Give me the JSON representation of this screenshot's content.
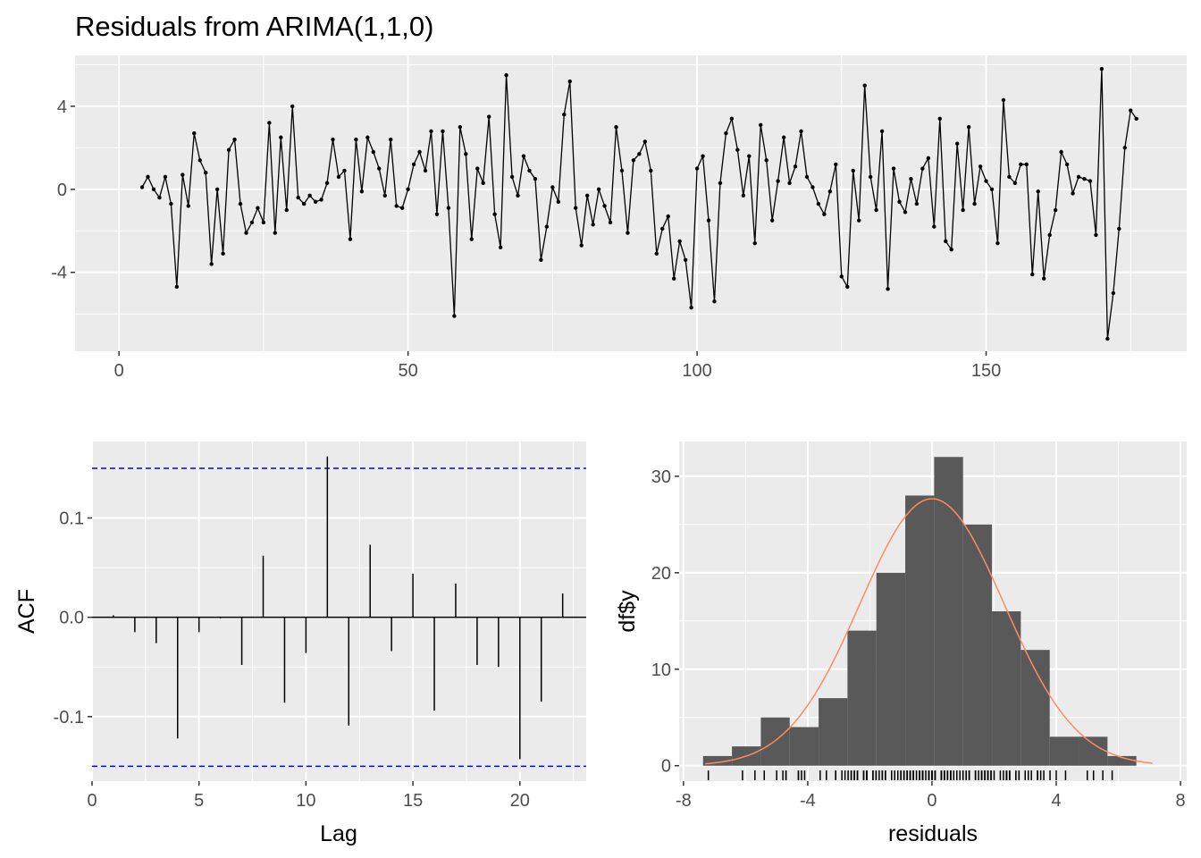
{
  "chart_data": [
    {
      "type": "line",
      "title": "Residuals from ARIMA(1,1,0)",
      "xlabel": "",
      "ylabel": "",
      "xlim": [
        -7.6,
        184.7
      ],
      "ylim": [
        -7.8,
        6.45
      ],
      "xticks": [
        0,
        50,
        100,
        150
      ],
      "yticks": [
        -4,
        0,
        4
      ],
      "grid": true,
      "x_start": 4,
      "values": [
        0.1,
        0.6,
        0,
        -0.4,
        0.6,
        -0.7,
        -4.7,
        0.7,
        -0.8,
        2.7,
        1.4,
        0.8,
        -3.6,
        0,
        -3.1,
        1.9,
        2.4,
        -0.7,
        -2.1,
        -1.6,
        -0.9,
        -1.6,
        3.2,
        -2.1,
        2.5,
        -1.0,
        4.0,
        -0.4,
        -0.7,
        -0.3,
        -0.6,
        -0.5,
        0.3,
        2.4,
        0.6,
        0.9,
        -2.4,
        2.4,
        -0.1,
        2.5,
        1.8,
        1.0,
        -0.3,
        2.4,
        -0.8,
        -0.9,
        0,
        1.2,
        1.8,
        0.9,
        2.8,
        -1.2,
        2.8,
        -0.9,
        -6.1,
        3.0,
        1.7,
        -2.4,
        1.0,
        0.3,
        3.5,
        -1.2,
        -2.8,
        5.5,
        0.6,
        -0.3,
        1.6,
        0.9,
        0.5,
        -3.4,
        -1.8,
        0.1,
        -0.6,
        3.6,
        5.2,
        -0.9,
        -2.7,
        -0.3,
        -1.7,
        0,
        -0.8,
        -1.6,
        3.0,
        0.9,
        -2.1,
        1.4,
        1.7,
        2.3,
        0.9,
        -3.1,
        -1.9,
        -1.3,
        -4.3,
        -2.5,
        -3.4,
        -5.7,
        1.0,
        1.6,
        -1.5,
        -5.4,
        0.3,
        2.7,
        3.4,
        1.9,
        -0.3,
        1.6,
        -2.6,
        3.1,
        1.4,
        -1.5,
        0.4,
        2.5,
        0.3,
        1.1,
        2.8,
        0.6,
        0.1,
        -0.7,
        -1.2,
        -0.1,
        1.2,
        -4.2,
        -4.7,
        0.9,
        -1.5,
        5.0,
        0.6,
        -1.0,
        2.8,
        -4.8,
        1.0,
        -0.6,
        -1.1,
        0.5,
        -0.7,
        1.0,
        1.5,
        -1.8,
        3.4,
        -2.5,
        -2.9,
        2.2,
        -1.0,
        3.0,
        -0.7,
        1.1,
        0.4,
        0,
        -2.6,
        4.3,
        0.6,
        0.3,
        1.2,
        1.2,
        -4.1,
        -0.1,
        -4.3,
        -2.2,
        -1.0,
        1.8,
        1.2,
        -0.2,
        0.6,
        0.5,
        0.4,
        -2.2,
        5.8,
        -7.2,
        -5.0,
        -1.9,
        2.0,
        3.8,
        3.4
      ]
    },
    {
      "type": "bar",
      "xlabel": "Lag",
      "ylabel": "ACF",
      "xlim": [
        0,
        23.1
      ],
      "ylim": [
        -0.165,
        0.177
      ],
      "xticks": [
        0,
        5,
        10,
        15,
        20
      ],
      "yticks": [
        -0.1,
        0.0,
        0.1
      ],
      "ytick_labels": [
        "-0.1",
        "0.0",
        "0.1"
      ],
      "lags": [
        1,
        2,
        3,
        4,
        5,
        6,
        7,
        8,
        9,
        10,
        11,
        12,
        13,
        14,
        15,
        16,
        17,
        18,
        19,
        20,
        21,
        22
      ],
      "values": [
        0.002,
        -0.015,
        -0.026,
        -0.122,
        -0.015,
        -0.001,
        -0.048,
        0.062,
        -0.086,
        -0.036,
        0.162,
        -0.109,
        0.073,
        -0.034,
        0.044,
        -0.094,
        0.034,
        -0.048,
        -0.05,
        -0.143,
        -0.085,
        0.024
      ],
      "confidence_bounds": [
        -0.15,
        0.15
      ],
      "bound_color": "#0000ff",
      "grid": true
    },
    {
      "type": "bar",
      "subtype": "histogram",
      "xlabel": "residuals",
      "ylabel": "df$y",
      "xlim": [
        -8.14,
        8.2
      ],
      "ylim": [
        -1.6,
        33.6
      ],
      "xticks": [
        -8,
        -4,
        0,
        4,
        8
      ],
      "yticks": [
        0,
        10,
        20,
        30
      ],
      "bin_start": -7.37,
      "bin_width": 0.93,
      "counts": [
        1,
        2,
        5,
        4,
        7,
        14,
        20,
        28,
        32,
        25,
        16,
        12,
        3,
        3,
        1
      ],
      "bar_color": "#595959",
      "normal_curve": {
        "mean": 0,
        "sd": 2.32,
        "color": "#ff8c5a",
        "range": [
          -7.3,
          7.1
        ]
      },
      "rug": true,
      "grid": true
    }
  ]
}
